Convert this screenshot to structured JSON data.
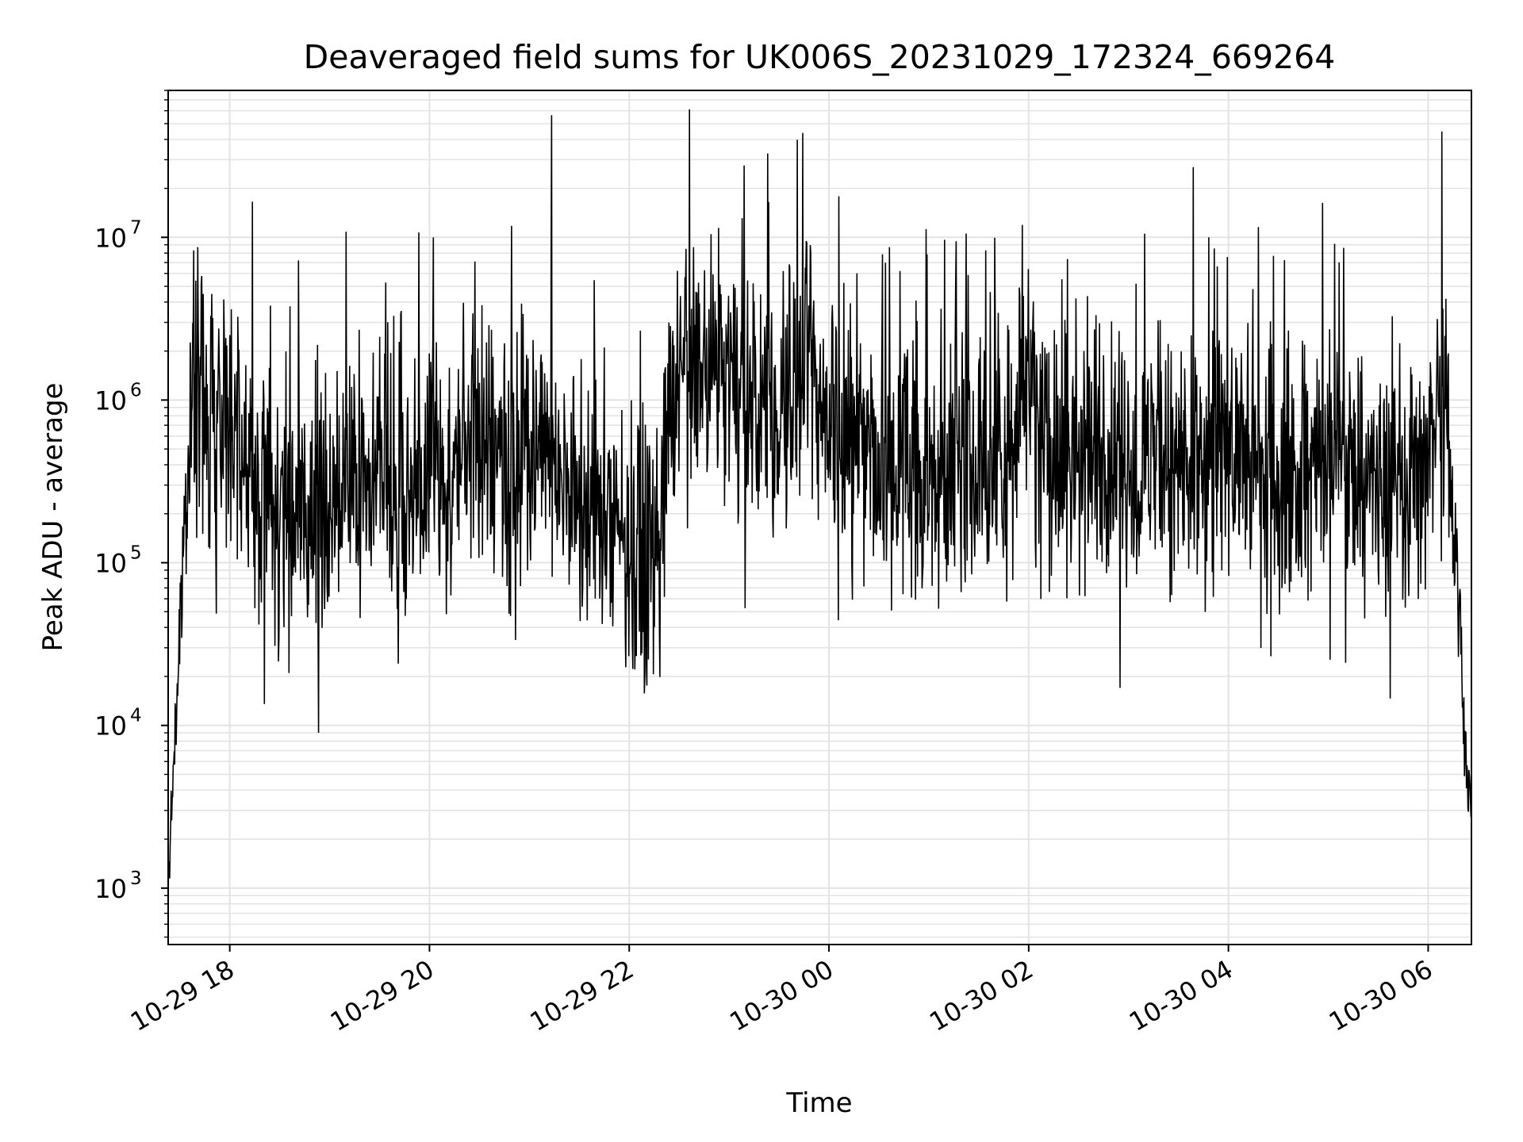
{
  "chart_data": {
    "type": "line",
    "title": "Deaveraged field sums for UK006S_20231029_172324_669264",
    "xlabel": "Time",
    "ylabel": "Peak ADU - average",
    "yscale": "log",
    "xlim": [
      "10-29 17:23",
      "10-30 06:26"
    ],
    "ylim": [
      450,
      80000000
    ],
    "grid": true,
    "line_color": "#000000",
    "grid_color": "#e3e3e3",
    "x_ticks": [
      "10-29 18",
      "10-29 20",
      "10-29 22",
      "10-30 00",
      "10-30 02",
      "10-30 04",
      "10-30 06"
    ],
    "y_ticks": [
      {
        "value": 1000,
        "base": "10",
        "exp": "3"
      },
      {
        "value": 10000,
        "base": "10",
        "exp": "4"
      },
      {
        "value": 100000,
        "base": "10",
        "exp": "5"
      },
      {
        "value": 1000000,
        "base": "10",
        "exp": "6"
      },
      {
        "value": 10000000,
        "base": "10",
        "exp": "7"
      }
    ],
    "series": [
      {
        "x": [
          "10-29 17:23",
          "10-29 17:25",
          "10-29 17:27",
          "10-29 17:29",
          "10-29 17:31",
          "10-29 17:33",
          "10-29 17:35",
          "10-29 17:37",
          "10-29 17:40",
          "10-29 17:45",
          "10-29 17:50",
          "10-29 17:55",
          "10-29 18:00",
          "10-29 18:05",
          "10-29 18:10",
          "10-29 18:20",
          "10-29 18:30",
          "10-29 18:40",
          "10-29 18:50",
          "10-29 19:00",
          "10-29 19:10",
          "10-29 19:20",
          "10-29 19:30",
          "10-29 19:40",
          "10-29 19:50",
          "10-29 20:00",
          "10-29 20:15",
          "10-29 20:30",
          "10-29 20:45",
          "10-29 21:00",
          "10-29 21:15",
          "10-29 21:30",
          "10-29 21:45",
          "10-29 22:00",
          "10-29 22:15",
          "10-29 22:30",
          "10-29 22:45",
          "10-29 23:00",
          "10-29 23:15",
          "10-29 23:30",
          "10-29 23:45",
          "10-30 00:00",
          "10-30 00:15",
          "10-30 00:30",
          "10-30 00:45",
          "10-30 01:00",
          "10-30 01:15",
          "10-30 01:30",
          "10-30 01:45",
          "10-30 02:00",
          "10-30 02:15",
          "10-30 02:30",
          "10-30 02:45",
          "10-30 03:00",
          "10-30 03:15",
          "10-30 03:30",
          "10-30 03:45",
          "10-30 04:00",
          "10-30 04:15",
          "10-30 04:30",
          "10-30 04:45",
          "10-30 05:00",
          "10-30 05:15",
          "10-30 05:30",
          "10-30 05:45",
          "10-30 06:00",
          "10-30 06:05",
          "10-30 06:10",
          "10-30 06:15",
          "10-30 06:20",
          "10-30 06:23",
          "10-30 06:26"
        ],
        "y": [
          900,
          3000,
          8000,
          20000,
          60000,
          200000,
          600000,
          900000,
          1000000,
          800000,
          700000,
          900000,
          1200000,
          600000,
          400000,
          300000,
          200000,
          180000,
          200000,
          200000,
          250000,
          500000,
          300000,
          250000,
          300000,
          350000,
          400000,
          600000,
          500000,
          450000,
          500000,
          200000,
          150000,
          150000,
          120000,
          1500000,
          1800000,
          1500000,
          1000000,
          800000,
          1500000,
          900000,
          600000,
          400000,
          350000,
          300000,
          400000,
          500000,
          450000,
          1500000,
          350000,
          400000,
          450000,
          380000,
          450000,
          320000,
          280000,
          550000,
          400000,
          350000,
          350000,
          450000,
          400000,
          300000,
          300000,
          350000,
          1000000,
          1400000,
          200000,
          30000,
          5000,
          3000
        ]
      }
    ]
  }
}
